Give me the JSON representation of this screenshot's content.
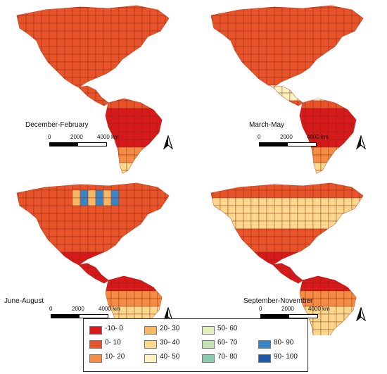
{
  "panels": [
    {
      "season": "December-February"
    },
    {
      "season": "March-May"
    },
    {
      "season": "June-August"
    },
    {
      "season": "September-November"
    }
  ],
  "scalebar": {
    "labels": [
      "0",
      "2000",
      "4000 km"
    ]
  },
  "legend": {
    "items": [
      {
        "label": "-10- 0",
        "color": "#d7191c"
      },
      {
        "label": "0- 10",
        "color": "#e8532a"
      },
      {
        "label": "10- 20",
        "color": "#f48c44"
      },
      {
        "label": "20- 30",
        "color": "#f7b865"
      },
      {
        "label": "30- 40",
        "color": "#fbd88c"
      },
      {
        "label": "40- 50",
        "color": "#fdf2bf"
      },
      {
        "label": "50- 60",
        "color": "#e4f0c0"
      },
      {
        "label": "60- 70",
        "color": "#c5e2b4"
      },
      {
        "label": "70- 80",
        "color": "#8cc9ad"
      },
      {
        "label": "80- 90",
        "color": "#3a86c4"
      },
      {
        "label": "90- 100",
        "color": "#1f5aa6"
      }
    ]
  },
  "colors": {
    "land_base": "#e8532a",
    "grid_line": "#8a2a12",
    "north_arrow": "#111111"
  }
}
